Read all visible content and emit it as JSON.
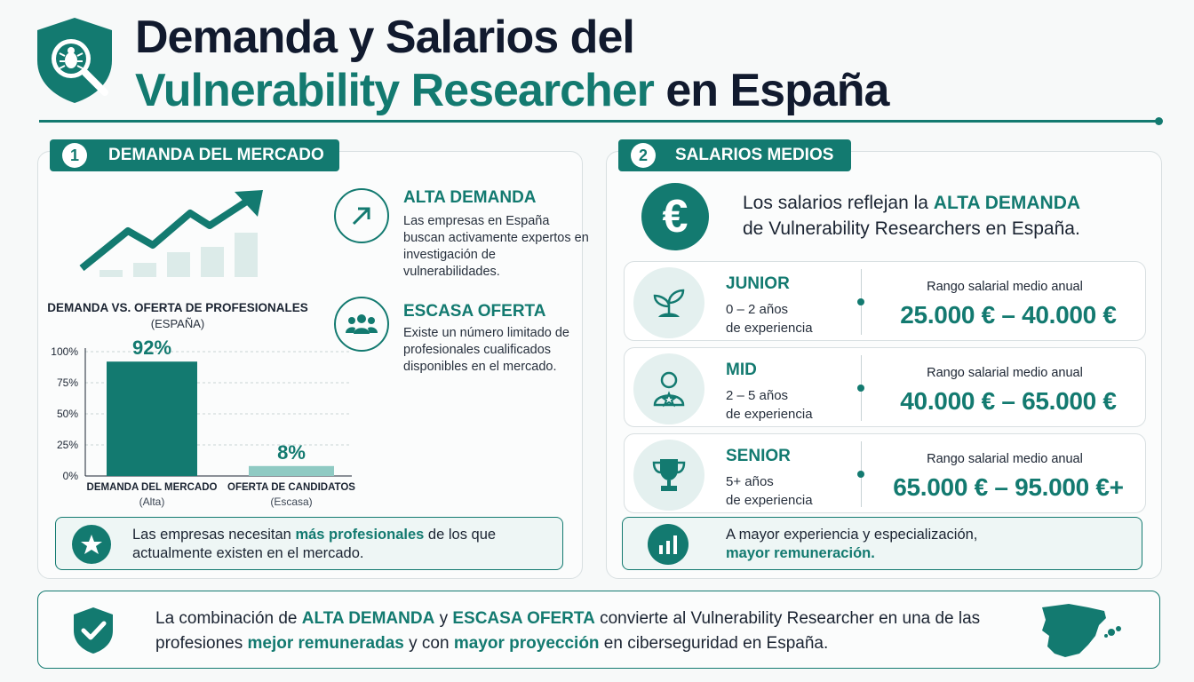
{
  "header": {
    "title_line1": "Demanda y Salarios del",
    "title_line2_accent": "Vulnerability Researcher",
    "title_line2_rest": " en España",
    "logo_icon": "shield-search-bug-icon"
  },
  "demand": {
    "number": "1",
    "heading": "DEMANDA DEL MERCADO",
    "features": [
      {
        "icon": "arrow-up-right-icon",
        "title": "ALTA DEMANDA",
        "description": "Las empresas en España buscan activamente expertos en investigación de vulnerabilidades."
      },
      {
        "icon": "people-group-icon",
        "title": "ESCASA OFERTA",
        "description": "Existe un número limitado de profesionales cualificados disponibles en el mercado."
      }
    ],
    "note": {
      "icon": "star-icon",
      "text_before": "Las empresas necesitan ",
      "text_highlight": "más profesionales",
      "text_after": " de los que actualmente existen en el mercado."
    }
  },
  "chart_data": {
    "type": "bar",
    "title": "DEMANDA VS. OFERTA DE PROFESIONALES",
    "subtitle": "(ESPAÑA)",
    "categories": [
      "DEMANDA DEL MERCADO",
      "OFERTA DE CANDIDATOS"
    ],
    "category_notes": [
      "(Alta)",
      "(Escasa)"
    ],
    "values": [
      92,
      8
    ],
    "value_labels": [
      "92%",
      "8%"
    ],
    "ylim": [
      0,
      100
    ],
    "yticks": [
      "0%",
      "25%",
      "50%",
      "75%",
      "100%"
    ],
    "ytick_values": [
      0,
      25,
      50,
      75,
      100
    ],
    "grid": true,
    "colors": [
      "#137a70",
      "#8fcac3"
    ]
  },
  "salaries": {
    "number": "2",
    "heading": "SALARIOS MEDIOS",
    "currency_symbol": "€",
    "intro_before": "Los salarios reflejan la ",
    "intro_highlight": "ALTA DEMANDA",
    "intro_after": "de Vulnerability Researchers en España.",
    "levels": [
      {
        "icon": "sprout-icon",
        "name": "JUNIOR",
        "years": "0 – 2 años",
        "experience": "de experiencia",
        "range_label": "Rango salarial medio anual",
        "range": "25.000 € – 40.000 €"
      },
      {
        "icon": "person-star-icon",
        "name": "MID",
        "years": "2 – 5 años",
        "experience": "de experiencia",
        "range_label": "Rango salarial medio anual",
        "range": "40.000 € – 65.000 €"
      },
      {
        "icon": "trophy-icon",
        "name": "SENIOR",
        "years": "5+ años",
        "experience": "de experiencia",
        "range_label": "Rango salarial medio anual",
        "range": "65.000 € – 95.000 €+"
      }
    ],
    "note": {
      "icon": "bar-chart-icon",
      "line1": "A mayor experiencia y especialización,",
      "line2": "mayor remuneración."
    }
  },
  "conclusion": {
    "icon": "shield-check-icon",
    "map_icon": "spain-map-icon",
    "p1": "La combinación de ",
    "h1": "ALTA DEMANDA",
    "p2": " y ",
    "h2": "ESCASA OFERTA",
    "p3": " convierte al Vulnerability Researcher en una de las",
    "p4": "profesiones ",
    "h3": "mejor remuneradas",
    "p5": " y con ",
    "h4": "mayor proyección",
    "p6": " en ciberseguridad en España."
  },
  "colors": {
    "accent": "#137a70",
    "accent_light": "#8fcac3",
    "text": "#1b2432"
  }
}
